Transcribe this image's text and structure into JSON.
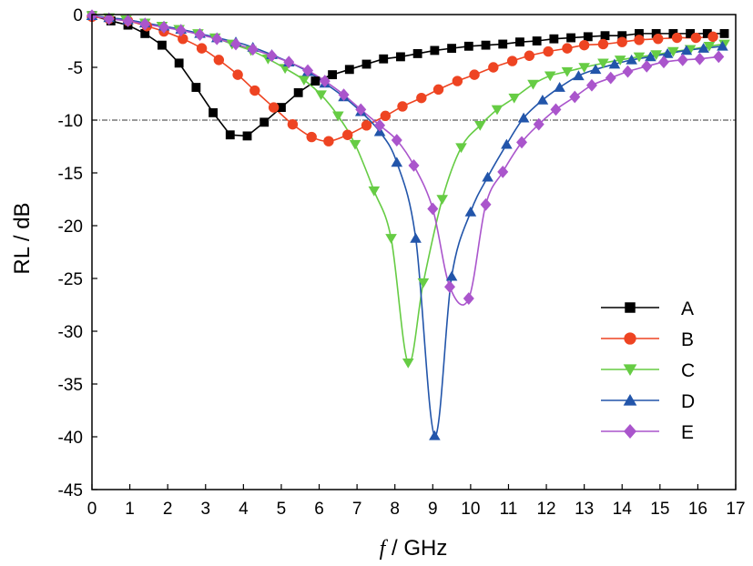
{
  "chart_data": {
    "type": "line",
    "xlabel": "f / GHz",
    "xlabel_parts": {
      "italic": "f",
      "rest": " / GHz"
    },
    "ylabel": "RL / dB",
    "xlim": [
      0,
      17
    ],
    "ylim": [
      -45,
      0
    ],
    "xticks": [
      "0",
      "1",
      "2",
      "3",
      "4",
      "5",
      "6",
      "7",
      "8",
      "9",
      "10",
      "11",
      "12",
      "13",
      "14",
      "15",
      "16",
      "17"
    ],
    "yticks": [
      "0",
      "-5",
      "-10",
      "-15",
      "-20",
      "-25",
      "-30",
      "-35",
      "-40",
      "-45"
    ],
    "reference_line": {
      "y": -10,
      "style": "dash-dot"
    },
    "legend_position": "bottom-right",
    "series": [
      {
        "name": "A",
        "color": "#000000",
        "marker": "square",
        "x": [
          0,
          0.5,
          0.95,
          1.4,
          1.85,
          2.3,
          2.75,
          3.2,
          3.65,
          4.1,
          4.55,
          5.0,
          5.45,
          5.9,
          6.35,
          6.8,
          7.25,
          7.7,
          8.15,
          8.6,
          9.05,
          9.5,
          9.95,
          10.4,
          10.85,
          11.3,
          11.75,
          12.2,
          12.65,
          13.1,
          13.55,
          14.0,
          14.45,
          14.9,
          15.35,
          15.8,
          16.25,
          16.7
        ],
        "y": [
          -0.1,
          -0.6,
          -1.0,
          -1.8,
          -2.9,
          -4.6,
          -6.9,
          -9.3,
          -11.4,
          -11.5,
          -10.2,
          -8.8,
          -7.4,
          -6.3,
          -5.7,
          -5.2,
          -4.7,
          -4.2,
          -4.0,
          -3.7,
          -3.4,
          -3.2,
          -3.0,
          -2.9,
          -2.8,
          -2.6,
          -2.5,
          -2.3,
          -2.2,
          -2.1,
          -2.0,
          -2.0,
          -1.8,
          -1.8,
          -1.8,
          -1.8,
          -1.8,
          -1.8
        ]
      },
      {
        "name": "B",
        "color": "#ee4422",
        "marker": "circle",
        "x": [
          0,
          0.45,
          0.95,
          1.45,
          1.9,
          2.4,
          2.9,
          3.35,
          3.85,
          4.3,
          4.8,
          5.3,
          5.8,
          6.25,
          6.75,
          7.25,
          7.75,
          8.2,
          8.7,
          9.15,
          9.65,
          10.1,
          10.6,
          11.1,
          11.55,
          12.05,
          12.55,
          13.0,
          13.5,
          14.0,
          14.45,
          14.95,
          15.45,
          15.95,
          16.4
        ],
        "y": [
          -0.2,
          -0.4,
          -0.6,
          -1.1,
          -1.6,
          -2.3,
          -3.2,
          -4.3,
          -5.7,
          -7.2,
          -8.8,
          -10.4,
          -11.6,
          -12.0,
          -11.4,
          -10.5,
          -9.6,
          -8.7,
          -7.9,
          -7.1,
          -6.3,
          -5.7,
          -5.0,
          -4.4,
          -3.9,
          -3.5,
          -3.2,
          -2.9,
          -2.8,
          -2.6,
          -2.4,
          -2.3,
          -2.2,
          -2.2,
          -2.1
        ]
      },
      {
        "name": "C",
        "color": "#66cc44",
        "marker": "triangle-down",
        "x": [
          0,
          0.45,
          0.9,
          1.4,
          1.85,
          2.3,
          2.8,
          3.25,
          3.7,
          4.2,
          4.65,
          5.1,
          5.6,
          6.05,
          6.5,
          6.95,
          7.45,
          7.9,
          8.35,
          8.75,
          9.25,
          9.75,
          10.25,
          10.7,
          11.15,
          11.65,
          12.1,
          12.55,
          13.0,
          13.5,
          13.95,
          14.45,
          14.9,
          15.35,
          15.8,
          16.3,
          16.7
        ],
        "y": [
          -0.1,
          -0.3,
          -0.5,
          -0.8,
          -1.1,
          -1.4,
          -1.8,
          -2.2,
          -2.8,
          -3.4,
          -4.2,
          -5.1,
          -6.2,
          -7.6,
          -9.6,
          -12.3,
          -16.7,
          -21.2,
          -33.0,
          -25.4,
          -17.5,
          -12.6,
          -10.5,
          -9.0,
          -7.9,
          -6.6,
          -5.8,
          -5.4,
          -5.0,
          -4.6,
          -4.3,
          -4.0,
          -3.8,
          -3.5,
          -3.3,
          -3.0,
          -2.8
        ]
      },
      {
        "name": "D",
        "color": "#2255aa",
        "marker": "triangle-up",
        "x": [
          0,
          0.45,
          0.95,
          1.4,
          1.9,
          2.35,
          2.85,
          3.3,
          3.8,
          4.25,
          4.75,
          5.2,
          5.7,
          6.15,
          6.65,
          7.1,
          7.6,
          8.05,
          8.55,
          9.05,
          9.5,
          10.0,
          10.45,
          10.95,
          11.4,
          11.9,
          12.35,
          12.85,
          13.3,
          13.8,
          14.25,
          14.75,
          15.2,
          15.7,
          16.15,
          16.65
        ],
        "y": [
          -0.1,
          -0.3,
          -0.5,
          -0.8,
          -1.1,
          -1.4,
          -1.8,
          -2.2,
          -2.6,
          -3.1,
          -3.8,
          -4.5,
          -5.4,
          -6.5,
          -7.8,
          -9.2,
          -11.1,
          -14.0,
          -21.2,
          -39.9,
          -24.8,
          -18.7,
          -15.4,
          -12.3,
          -9.8,
          -8.1,
          -6.9,
          -5.8,
          -5.2,
          -4.7,
          -4.3,
          -4.0,
          -3.7,
          -3.4,
          -3.2,
          -3.0
        ]
      },
      {
        "name": "E",
        "color": "#aa55cc",
        "marker": "diamond",
        "x": [
          0,
          0.45,
          0.95,
          1.4,
          1.9,
          2.35,
          2.85,
          3.3,
          3.8,
          4.25,
          4.75,
          5.2,
          5.7,
          6.15,
          6.65,
          7.1,
          7.6,
          8.05,
          8.5,
          9.0,
          9.45,
          9.95,
          10.4,
          10.85,
          11.35,
          11.8,
          12.25,
          12.75,
          13.2,
          13.7,
          14.15,
          14.65,
          15.1,
          15.6,
          16.05,
          16.55
        ],
        "y": [
          -0.1,
          -0.4,
          -0.6,
          -0.9,
          -1.2,
          -1.5,
          -1.9,
          -2.3,
          -2.8,
          -3.3,
          -3.9,
          -4.5,
          -5.3,
          -6.3,
          -7.6,
          -9.0,
          -10.5,
          -11.9,
          -14.3,
          -18.4,
          -25.8,
          -26.9,
          -18.0,
          -14.9,
          -12.1,
          -10.4,
          -9.0,
          -7.8,
          -6.7,
          -6.0,
          -5.4,
          -4.9,
          -4.5,
          -4.3,
          -4.2,
          -4.0
        ]
      }
    ]
  }
}
